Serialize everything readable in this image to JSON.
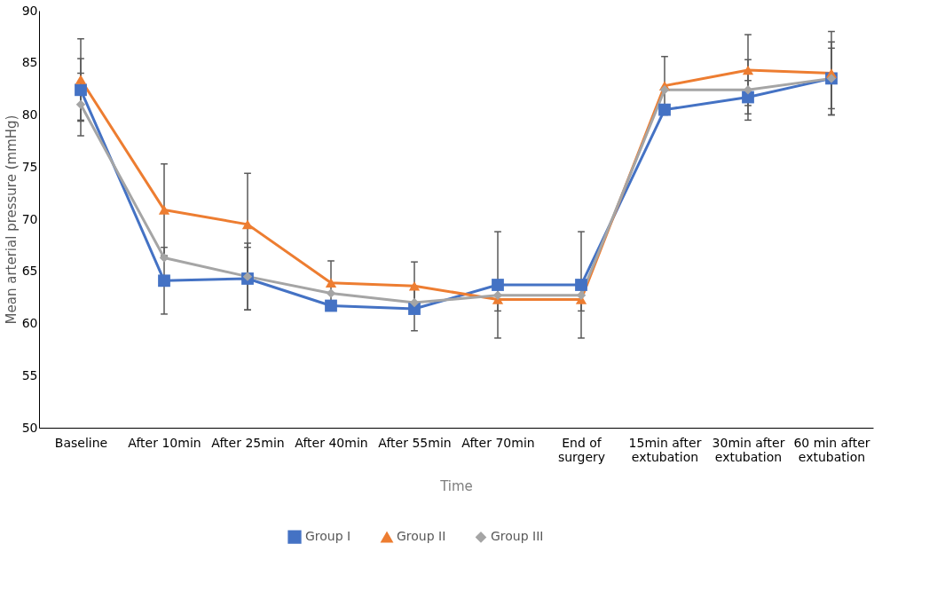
{
  "chart_data": {
    "type": "line",
    "xlabel": "Time",
    "ylabel": "Mean arterial pressure (mmHg)",
    "categories": [
      "Baseline",
      "After 10min",
      "After 25min",
      "After 40min",
      "After 55min",
      "After 70min",
      "End of surgery",
      "15min after extubation",
      "30min after extubation",
      "60 min after extubation"
    ],
    "ylim": [
      50,
      90
    ],
    "yticks": [
      50,
      55,
      60,
      65,
      70,
      75,
      80,
      85,
      90
    ],
    "grid": false,
    "legend": "bottom",
    "series": [
      {
        "name": "Group I",
        "color": "#4472c4",
        "marker": "square",
        "values": [
          82.4,
          64.1,
          64.3,
          61.7,
          61.4,
          63.7,
          63.7,
          80.5,
          81.7,
          83.5
        ],
        "errors": [
          3.0,
          3.2,
          3.0,
          null,
          2.1,
          5.1,
          5.1,
          null,
          1.6,
          2.9
        ]
      },
      {
        "name": "Group II",
        "color": "#ed7d31",
        "marker": "triangle",
        "values": [
          83.4,
          70.9,
          69.5,
          63.9,
          63.6,
          62.3,
          62.3,
          82.8,
          84.3,
          84.0
        ],
        "errors": [
          3.9,
          4.4,
          4.9,
          2.1,
          2.3,
          1.1,
          1.1,
          2.8,
          3.4,
          4.0
        ]
      },
      {
        "name": "Group III",
        "color": "#a5a5a5",
        "marker": "diamond",
        "values": [
          81.0,
          66.3,
          64.5,
          62.9,
          62.0,
          62.7,
          62.7,
          82.4,
          82.4,
          83.5
        ],
        "errors": [
          3.0,
          null,
          3.2,
          null,
          null,
          null,
          null,
          null,
          2.9,
          3.5
        ]
      }
    ]
  }
}
